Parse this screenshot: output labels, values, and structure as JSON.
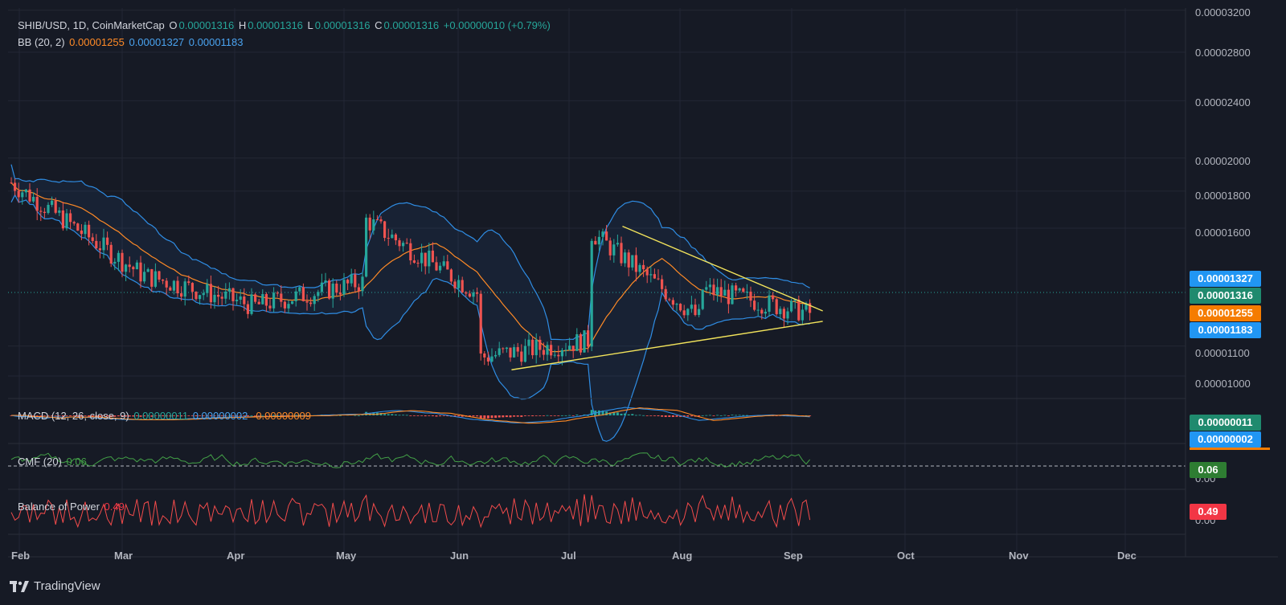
{
  "header": {
    "symbol": "SHIB/USD, 1D, CoinMarketCap",
    "o_label": "O",
    "o_value": "0.00001316",
    "h_label": "H",
    "h_value": "0.00001316",
    "l_label": "L",
    "l_value": "0.00001316",
    "c_label": "C",
    "c_value": "0.00001316",
    "change": "+0.00000010 (+0.79%)"
  },
  "bb_legend": {
    "label": "BB (20, 2)",
    "basis": "0.00001255",
    "upper": "0.00001327",
    "lower": "0.00001183"
  },
  "macd_legend": {
    "label": "MACD (12, 26, close, 9)",
    "hist": "0.00000011",
    "macd": "0.00000002",
    "signal": "-0.00000009"
  },
  "cmf_legend": {
    "label": "CMF (20)",
    "value": "0.06"
  },
  "bop_legend": {
    "label": "Balance of Power",
    "value": "0.49"
  },
  "price_tags": {
    "bb_upper": "0.00001327",
    "last": "0.00001316",
    "bb_basis": "0.00001255",
    "bb_lower": "0.00001183",
    "macd_hist": "0.00000011",
    "macd_line": "0.00000002",
    "cmf": "0.06",
    "bop": "0.49"
  },
  "colors": {
    "background": "#161a25",
    "up": "#26a69a",
    "down": "#ef5350",
    "bb_basis": "#ff8a26",
    "bb_band": "#2f8de4",
    "trendline": "#f2e35b",
    "cmf": "#43a047",
    "bop": "#f24b4b"
  },
  "footer": {
    "brand": "TradingView"
  },
  "chart_data": {
    "type": "candlestick",
    "title": "SHIB/USD, 1D, CoinMarketCap",
    "y_axis_ticks": [
      "0.00003200",
      "0.00002800",
      "0.00002400",
      "0.00002000",
      "0.00001800",
      "0.00001600",
      "0.00001100",
      "0.00001000"
    ],
    "y_scale": "log",
    "ylim": [
      9.6e-06,
      3.3e-06
    ],
    "x_axis_ticks": [
      "Feb",
      "Mar",
      "Apr",
      "May",
      "Jun",
      "Jul",
      "Aug",
      "Sep",
      "Oct",
      "Nov",
      "Dec"
    ],
    "sub_axis_ticks": {
      "cmf": "0.00",
      "bop": "0.00"
    },
    "price_close_path": [
      [
        "Feb",
        1.85e-05
      ],
      [
        "Mar",
        1.38e-05
      ],
      [
        "Apr",
        1.25e-05
      ],
      [
        "May",
        1.35e-05
      ],
      [
        "May",
        1.65e-05
      ],
      [
        "Jun",
        1.3e-05
      ],
      [
        "Jun",
        1.06e-05
      ],
      [
        "Jul",
        1.12e-05
      ],
      [
        "Jul",
        1.59e-05
      ],
      [
        "Aug",
        1.2e-05
      ],
      [
        "Aug",
        1.32e-05
      ],
      [
        "Sep",
        1.22e-05
      ],
      [
        "Sep",
        1.316e-05
      ]
    ],
    "bollinger": {
      "period": 20,
      "stddev": 2,
      "basis": 1.255e-05,
      "upper": 1.327e-05,
      "lower": 1.183e-05
    },
    "trendlines": [
      {
        "name": "upper",
        "from": [
          "Jul",
          1.61e-05
        ],
        "to": [
          "Sep",
          1.23e-05
        ]
      },
      {
        "name": "lower",
        "from": [
          "Jun",
          1.02e-05
        ],
        "to": [
          "Sep",
          1.19e-05
        ]
      }
    ],
    "indicators": {
      "macd_hist": 1.1e-07,
      "macd": 2e-08,
      "macd_signal": -9e-08,
      "cmf": 0.06,
      "bop": 0.49
    },
    "grid": true,
    "legend_placement": "top-left"
  }
}
